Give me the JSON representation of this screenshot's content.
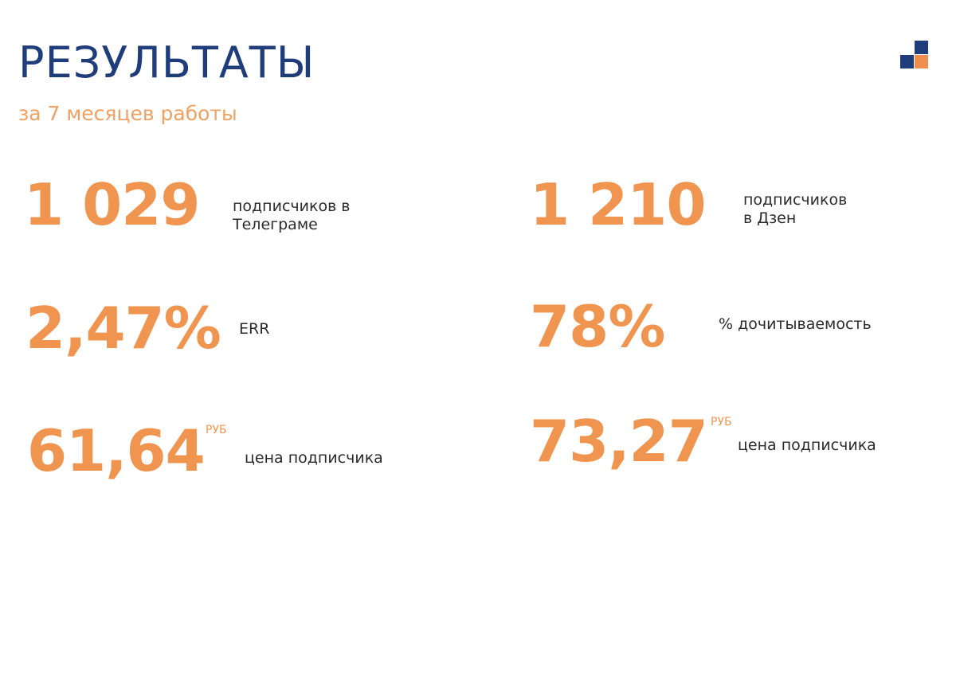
{
  "header": {
    "title": "РЕЗУЛЬТАТЫ",
    "subtitle": "за 7 месяцев работы"
  },
  "colors": {
    "title": "#1f3d7a",
    "accent": "#ef9550",
    "text": "#2b2b2b"
  },
  "logo": {
    "icon": "squares-logo-icon"
  },
  "metrics": {
    "telegram_subscribers": {
      "value": "1 029",
      "label": "подписчиков в\nТелеграме"
    },
    "zen_subscribers": {
      "value": "1 210",
      "label": "подписчиков\nв Дзен"
    },
    "err": {
      "value": "2,47%",
      "label": "ERR"
    },
    "read_rate": {
      "value": "78%",
      "label": "% дочитываемость"
    },
    "price_telegram": {
      "value": "61,64",
      "unit": "РУБ",
      "label": "цена подписчика"
    },
    "price_zen": {
      "value": "73,27",
      "unit": "РУБ",
      "label": "цена подписчика"
    }
  }
}
